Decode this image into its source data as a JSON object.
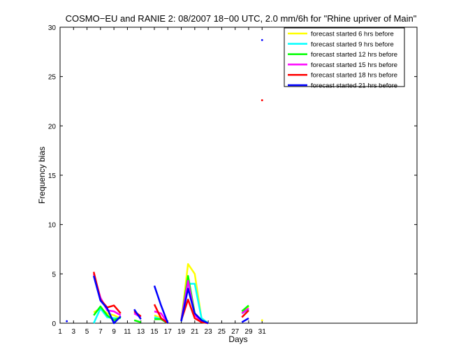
{
  "chart_data": {
    "type": "line",
    "title": "COSMO−EU and RANIE 2: 08/2007 18−00 UTC, 2.0 mm/6h for \"Rhine upriver of Main\"",
    "xlabel": "Days",
    "ylabel": "Frequency bias",
    "xlim": [
      1,
      54
    ],
    "ylim": [
      0,
      30
    ],
    "x_ticks": [
      1,
      3,
      5,
      7,
      9,
      11,
      13,
      15,
      17,
      19,
      21,
      23,
      25,
      27,
      29,
      31
    ],
    "y_ticks": [
      0,
      5,
      10,
      15,
      20,
      25,
      30
    ],
    "legend_position": "top-right",
    "grid": false,
    "series": [
      {
        "name": "forecast started 6 hrs before",
        "color": "#ffff00",
        "segments": [
          [
            [
              6,
              1.1
            ],
            [
              7,
              1.5
            ],
            [
              8,
              1.0
            ],
            [
              9,
              0.8
            ],
            [
              10,
              0.5
            ]
          ],
          [
            [
              15,
              0.8
            ],
            [
              16,
              0.5
            ],
            [
              17,
              0.0
            ]
          ],
          [
            [
              19,
              0.2
            ],
            [
              20,
              6.0
            ],
            [
              21,
              5.0
            ],
            [
              22,
              0.5
            ],
            [
              23,
              0.0
            ]
          ],
          [
            [
              28,
              1.0
            ],
            [
              29,
              1.7
            ]
          ]
        ],
        "points": [
          [
            31,
            0.3
          ]
        ]
      },
      {
        "name": "forecast started 9 hrs before",
        "color": "#00ffff",
        "segments": [
          [
            [
              6,
              0.0
            ],
            [
              7,
              1.5
            ],
            [
              8,
              0.6
            ],
            [
              9,
              0.5
            ],
            [
              10,
              0.5
            ]
          ],
          [
            [
              15,
              0.6
            ],
            [
              16,
              0.4
            ],
            [
              17,
              0.0
            ]
          ],
          [
            [
              19,
              0.2
            ],
            [
              20,
              4.0
            ],
            [
              21,
              4.0
            ],
            [
              22,
              0.5
            ],
            [
              23,
              0.0
            ]
          ],
          [
            [
              28,
              1.0
            ],
            [
              29,
              1.4
            ]
          ]
        ],
        "points": []
      },
      {
        "name": "forecast started 12 hrs before",
        "color": "#00ff00",
        "segments": [
          [
            [
              6,
              0.8
            ],
            [
              7,
              1.7
            ],
            [
              8,
              0.8
            ],
            [
              9,
              0.3
            ],
            [
              10,
              0.6
            ]
          ],
          [
            [
              12,
              0.3
            ],
            [
              13,
              0.1
            ]
          ],
          [
            [
              15,
              0.4
            ],
            [
              16,
              0.4
            ],
            [
              17,
              0.0
            ]
          ],
          [
            [
              19,
              0.3
            ],
            [
              20,
              4.8
            ],
            [
              21,
              1.0
            ],
            [
              22,
              0.3
            ],
            [
              23,
              0.0
            ]
          ],
          [
            [
              28,
              1.2
            ],
            [
              29,
              1.8
            ]
          ]
        ],
        "points": []
      },
      {
        "name": "forecast started 15 hrs before",
        "color": "#ff00ff",
        "segments": [
          [
            [
              6,
              5.0
            ],
            [
              7,
              2.6
            ],
            [
              8,
              1.3
            ],
            [
              9,
              1.2
            ],
            [
              10,
              0.8
            ]
          ],
          [
            [
              12,
              1.0
            ],
            [
              13,
              0.6
            ]
          ],
          [
            [
              15,
              1.2
            ],
            [
              16,
              1.0
            ],
            [
              17,
              0.0
            ]
          ],
          [
            [
              19,
              0.3
            ],
            [
              20,
              4.3
            ],
            [
              21,
              0.8
            ],
            [
              22,
              0.2
            ],
            [
              23,
              0.0
            ]
          ],
          [
            [
              28,
              1.0
            ],
            [
              29,
              1.5
            ]
          ]
        ],
        "points": []
      },
      {
        "name": "forecast started 18 hrs before",
        "color": "#ff0000",
        "segments": [
          [
            [
              6,
              5.2
            ],
            [
              7,
              2.4
            ],
            [
              8,
              1.6
            ],
            [
              9,
              1.8
            ],
            [
              10,
              1.0
            ]
          ],
          [
            [
              12,
              1.2
            ],
            [
              13,
              0.7
            ]
          ],
          [
            [
              15,
              1.9
            ],
            [
              16,
              0.5
            ],
            [
              17,
              0.0
            ]
          ],
          [
            [
              19,
              0.3
            ],
            [
              20,
              2.4
            ],
            [
              21,
              0.5
            ],
            [
              22,
              0.1
            ],
            [
              23,
              0.0
            ]
          ],
          [
            [
              28,
              0.6
            ],
            [
              29,
              1.3
            ]
          ]
        ],
        "points": [
          [
            31,
            22.6
          ]
        ]
      },
      {
        "name": "forecast started 21 hrs before",
        "color": "#0000ff",
        "segments": [
          [
            [
              6,
              4.8
            ],
            [
              7,
              2.3
            ],
            [
              8,
              1.5
            ],
            [
              9,
              0.0
            ],
            [
              10,
              0.7
            ]
          ],
          [
            [
              12,
              1.4
            ],
            [
              13,
              0.4
            ]
          ],
          [
            [
              15,
              3.8
            ],
            [
              16,
              1.8
            ],
            [
              17,
              0.0
            ]
          ],
          [
            [
              19,
              0.2
            ],
            [
              20,
              3.5
            ],
            [
              21,
              1.0
            ],
            [
              22,
              0.3
            ],
            [
              23,
              0.0
            ]
          ],
          [
            [
              28,
              0.1
            ],
            [
              29,
              0.5
            ]
          ]
        ],
        "points": [
          [
            2,
            0.2
          ],
          [
            31,
            28.7
          ]
        ]
      }
    ]
  }
}
